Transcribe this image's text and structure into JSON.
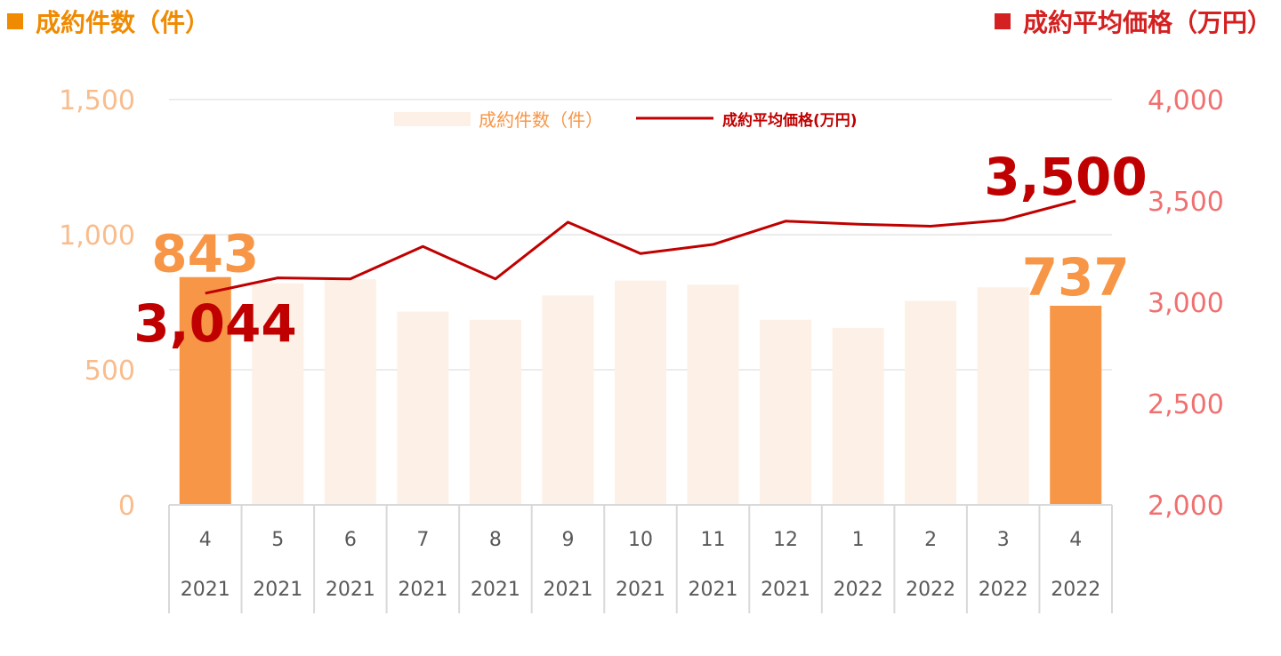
{
  "header": {
    "left_title": "成約件数（件）",
    "right_title": "成約平均価格（万円）"
  },
  "colors": {
    "bar_highlight": "#F79646",
    "bar_faded": "#FDF0E6",
    "line": "#C00000",
    "left_axis": "#F9BC8C",
    "right_axis": "#F07070",
    "left_header": "#F08A00",
    "right_header": "#D42020",
    "grid": "#D9D9D9"
  },
  "chart_data": {
    "type": "bar+line",
    "categories": [
      {
        "month": "4",
        "year": "2021"
      },
      {
        "month": "5",
        "year": "2021"
      },
      {
        "month": "6",
        "year": "2021"
      },
      {
        "month": "7",
        "year": "2021"
      },
      {
        "month": "8",
        "year": "2021"
      },
      {
        "month": "9",
        "year": "2021"
      },
      {
        "month": "10",
        "year": "2021"
      },
      {
        "month": "11",
        "year": "2021"
      },
      {
        "month": "12",
        "year": "2021"
      },
      {
        "month": "1",
        "year": "2022"
      },
      {
        "month": "2",
        "year": "2022"
      },
      {
        "month": "3",
        "year": "2022"
      },
      {
        "month": "4",
        "year": "2022"
      }
    ],
    "series": [
      {
        "name": "成約件数（件）",
        "kind": "bar",
        "axis": "left",
        "values": [
          843,
          820,
          835,
          715,
          685,
          775,
          830,
          815,
          685,
          655,
          755,
          805,
          737
        ]
      },
      {
        "name": "成約平均価格(万円)",
        "kind": "line",
        "axis": "right",
        "values": [
          3044,
          3120,
          3115,
          3275,
          3115,
          3395,
          3240,
          3285,
          3400,
          3385,
          3375,
          3405,
          3500
        ]
      }
    ],
    "left_axis": {
      "min": 0,
      "max": 1500,
      "ticks": [
        "0",
        "500",
        "1,000",
        "1,500"
      ]
    },
    "right_axis": {
      "min": 2000,
      "max": 4000,
      "ticks": [
        "2,000",
        "2,500",
        "3,000",
        "3,500",
        "4,000"
      ]
    },
    "highlight_indices": [
      0,
      12
    ],
    "annotations": {
      "first_bar": "843",
      "last_bar": "737",
      "first_price": "3,044",
      "last_price": "3,500"
    },
    "legend_position": "top-center",
    "grid": true
  }
}
